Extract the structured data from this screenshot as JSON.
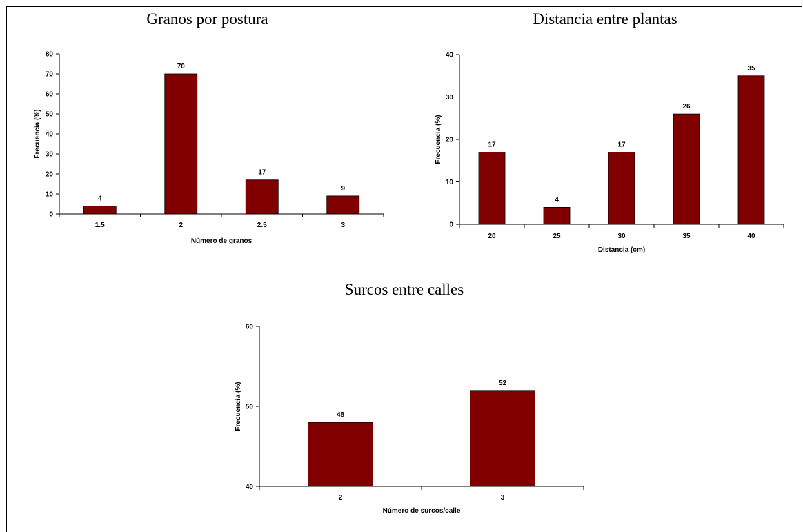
{
  "colors": {
    "bar": "#800000",
    "axis": "#000000",
    "frame": "#000000"
  },
  "chart_data": [
    {
      "type": "bar",
      "title": "Granos por postura",
      "xlabel": "Número de granos",
      "ylabel": "Frecuencia (%)",
      "categories": [
        "1.5",
        "2",
        "2.5",
        "3"
      ],
      "values": [
        4,
        70,
        17,
        9
      ],
      "data_labels": [
        "4",
        "70",
        "17",
        "9"
      ],
      "ylim": [
        0,
        80
      ],
      "yticks": [
        "0",
        "10",
        "20",
        "30",
        "40",
        "50",
        "60",
        "70",
        "80"
      ],
      "grid": false,
      "legend": "none"
    },
    {
      "type": "bar",
      "title": "Distancia entre plantas",
      "xlabel": "Distancia (cm)",
      "ylabel": "Frecuencia (%)",
      "categories": [
        "20",
        "25",
        "30",
        "35",
        "40"
      ],
      "values": [
        17,
        4,
        17,
        26,
        35
      ],
      "data_labels": [
        "17",
        "4",
        "17",
        "26",
        "35"
      ],
      "ylim": [
        0,
        40
      ],
      "yticks": [
        "0",
        "10",
        "20",
        "30",
        "40"
      ],
      "grid": false,
      "legend": "none"
    },
    {
      "type": "bar",
      "title": "Surcos entre calles",
      "xlabel": "Número de surcos/calle",
      "ylabel": "Frecuencia (%)",
      "categories": [
        "2",
        "3"
      ],
      "values": [
        48,
        52
      ],
      "data_labels": [
        "48",
        "52"
      ],
      "ylim": [
        40,
        60
      ],
      "yticks": [
        "40",
        "50",
        "60"
      ],
      "grid": false,
      "legend": "none"
    }
  ]
}
